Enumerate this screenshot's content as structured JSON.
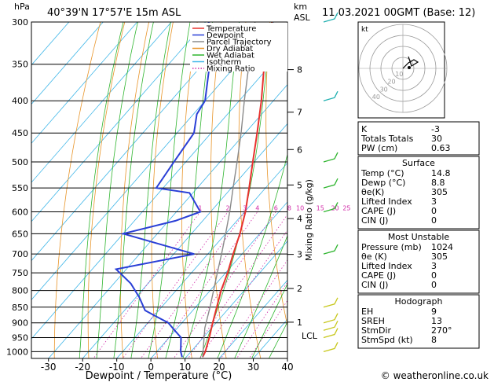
{
  "header": {
    "units_hpa": "hPa",
    "location": "40°39'N  17°57'E  15m  ASL",
    "units_km": "km",
    "units_asl": "ASL",
    "datetime": "11.03.2021  00GMT  (Base: 12)"
  },
  "chart_data": {
    "type": "line",
    "title": "Skew-T log-P sounding",
    "xlabel": "Dewpoint / Temperature (°C)",
    "ylabel_right": "Mixing Ratio (g/kg)",
    "x_ticks": [
      -30,
      -20,
      -10,
      0,
      10,
      20,
      30,
      40
    ],
    "xlim": [
      -35,
      40
    ],
    "p_levels": [
      300,
      350,
      400,
      450,
      500,
      550,
      600,
      650,
      700,
      750,
      800,
      850,
      900,
      950,
      1000
    ],
    "ylim_hpa": [
      300,
      1025
    ],
    "skew_degC_per_log": 70,
    "km_ticks": [
      {
        "km": 8,
        "p": 357
      },
      {
        "km": 7,
        "p": 417
      },
      {
        "km": 6,
        "p": 478
      },
      {
        "km": 5,
        "p": 544
      },
      {
        "km": 4,
        "p": 615
      },
      {
        "km": 3,
        "p": 701
      },
      {
        "km": 2,
        "p": 794
      },
      {
        "km": 1,
        "p": 898
      }
    ],
    "lcl": {
      "label": "LCL",
      "p": 917
    },
    "mixing_ratio_labels": [
      "1",
      "2",
      "3",
      "4",
      "6",
      "8",
      "10",
      "15",
      "20",
      "25"
    ],
    "legend": [
      {
        "name": "Temperature",
        "color": "#e8322e"
      },
      {
        "name": "Dewpoint",
        "color": "#2a3fd6"
      },
      {
        "name": "Parcel Trajectory",
        "color": "#8a8a8a"
      },
      {
        "name": "Dry Adiabat",
        "color": "#e8952a"
      },
      {
        "name": "Wet Adiabat",
        "color": "#2fb52f"
      },
      {
        "name": "Isotherm",
        "color": "#3fb6e8"
      },
      {
        "name": "Mixing Ratio",
        "color": "#d12aa8"
      }
    ],
    "series": [
      {
        "name": "Temperature",
        "points": [
          [
            1020,
            14.8
          ],
          [
            1000,
            14.2
          ],
          [
            950,
            11.8
          ],
          [
            900,
            9.0
          ],
          [
            850,
            6.2
          ],
          [
            800,
            3.2
          ],
          [
            750,
            0.6
          ],
          [
            700,
            -2.6
          ],
          [
            650,
            -5.8
          ],
          [
            600,
            -9.8
          ],
          [
            550,
            -14.8
          ],
          [
            500,
            -20.4
          ],
          [
            450,
            -26.5
          ],
          [
            400,
            -33.5
          ],
          [
            350,
            -42.0
          ],
          [
            300,
            -50.5
          ]
        ]
      },
      {
        "name": "Dewpoint",
        "points": [
          [
            1020,
            8.8
          ],
          [
            1000,
            7.0
          ],
          [
            950,
            3.5
          ],
          [
            920,
            -1.0
          ],
          [
            900,
            -4.0
          ],
          [
            880,
            -9.0
          ],
          [
            860,
            -14.0
          ],
          [
            820,
            -19.0
          ],
          [
            780,
            -25.0
          ],
          [
            740,
            -33.0
          ],
          [
            700,
            -14.0
          ],
          [
            650,
            -40.0
          ],
          [
            620,
            -28.0
          ],
          [
            600,
            -23.0
          ],
          [
            560,
            -31.0
          ],
          [
            550,
            -42.0
          ],
          [
            500,
            -43.5
          ],
          [
            450,
            -45.0
          ],
          [
            420,
            -49.0
          ],
          [
            400,
            -50.0
          ],
          [
            350,
            -58.0
          ],
          [
            320,
            -62.0
          ],
          [
            310,
            -68.0
          ],
          [
            300,
            -69.0
          ]
        ]
      },
      {
        "name": "Parcel Trajectory",
        "points": [
          [
            1020,
            14.8
          ],
          [
            917,
            8.0
          ],
          [
            850,
            4.2
          ],
          [
            800,
            1.0
          ],
          [
            750,
            -2.4
          ],
          [
            700,
            -6.0
          ],
          [
            650,
            -10.0
          ],
          [
            600,
            -14.4
          ],
          [
            550,
            -19.5
          ],
          [
            500,
            -25.0
          ],
          [
            450,
            -31.2
          ],
          [
            400,
            -38.5
          ],
          [
            350,
            -46.5
          ],
          [
            300,
            -55.5
          ]
        ]
      }
    ],
    "winds": [
      1000,
      950,
      925,
      900,
      850,
      700,
      600,
      550,
      500,
      400,
      300
    ]
  },
  "hodograph": {
    "unit_label": "kt",
    "ring_labels": [
      "10",
      "20",
      "30",
      "40"
    ]
  },
  "indices": [
    {
      "key": "K",
      "value": "-3"
    },
    {
      "key": "Totals Totals",
      "value": "30"
    },
    {
      "key": "PW (cm)",
      "value": "0.63"
    }
  ],
  "surface": {
    "title": "Surface",
    "rows": [
      {
        "key": "Temp (°C)",
        "value": "14.8"
      },
      {
        "key": "Dewp (°C)",
        "value": "8.8"
      },
      {
        "key": "θe(K)",
        "value": "305"
      },
      {
        "key": "Lifted Index",
        "value": "3"
      },
      {
        "key": "CAPE (J)",
        "value": "0"
      },
      {
        "key": "CIN (J)",
        "value": "0"
      }
    ]
  },
  "most_unstable": {
    "title": "Most Unstable",
    "rows": [
      {
        "key": "Pressure (mb)",
        "value": "1024"
      },
      {
        "key": "θe (K)",
        "value": "305"
      },
      {
        "key": "Lifted Index",
        "value": "3"
      },
      {
        "key": "CAPE (J)",
        "value": "0"
      },
      {
        "key": "CIN (J)",
        "value": "0"
      }
    ]
  },
  "hodograph_table": {
    "title": "Hodograph",
    "rows": [
      {
        "key": "EH",
        "value": "9"
      },
      {
        "key": "SREH",
        "value": "13"
      },
      {
        "key": "StmDir",
        "value": "270°"
      },
      {
        "key": "StmSpd (kt)",
        "value": "8"
      }
    ]
  },
  "footer": {
    "copyright": "© weatheronline.co.uk"
  }
}
